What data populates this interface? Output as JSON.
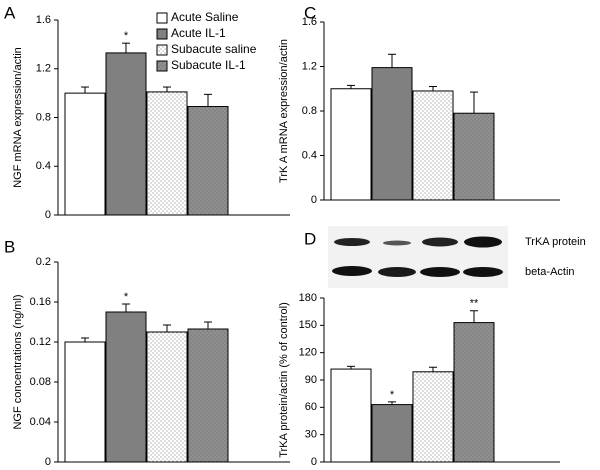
{
  "chart_data": [
    {
      "type": "bar",
      "panel": "A",
      "ylabel": "NGF mRNA expression/actin",
      "ylim": [
        0,
        1.6
      ],
      "yticks": [
        0,
        0.4,
        0.8,
        1.2,
        1.6
      ],
      "legend": "upper right",
      "series": [
        {
          "name": "Acute Saline",
          "color": "#ffffff",
          "dots": false,
          "values": [
            1.0
          ],
          "errors": [
            0.05
          ]
        },
        {
          "name": "Acute IL-1",
          "color": "#808080",
          "dots": false,
          "values": [
            1.33
          ],
          "errors": [
            0.08
          ]
        },
        {
          "name": "Subacute saline",
          "color": "#ffffff",
          "dots": true,
          "values": [
            1.01
          ],
          "errors": [
            0.04
          ]
        },
        {
          "name": "Subacute IL-1",
          "color": "#909090",
          "dots": true,
          "values": [
            0.89
          ],
          "errors": [
            0.1
          ]
        }
      ],
      "annotations": [
        {
          "series": 1,
          "text": "*"
        }
      ]
    },
    {
      "type": "bar",
      "panel": "B",
      "ylabel": "NGF concentrations (ng/ml)",
      "ylim": [
        0,
        0.2
      ],
      "yticks": [
        0,
        0.04,
        0.08,
        0.12,
        0.16,
        0.2
      ],
      "series": [
        {
          "color": "#ffffff",
          "dots": false,
          "values": [
            0.12
          ],
          "errors": [
            0.004
          ]
        },
        {
          "color": "#808080",
          "dots": false,
          "values": [
            0.15
          ],
          "errors": [
            0.008
          ]
        },
        {
          "color": "#ffffff",
          "dots": true,
          "values": [
            0.13
          ],
          "errors": [
            0.007
          ]
        },
        {
          "color": "#909090",
          "dots": true,
          "values": [
            0.133
          ],
          "errors": [
            0.007
          ]
        }
      ],
      "annotations": [
        {
          "series": 1,
          "text": "*"
        }
      ]
    },
    {
      "type": "bar",
      "panel": "C",
      "ylabel": "TrK A mRNA expression/actin",
      "ylim": [
        0,
        1.6
      ],
      "yticks": [
        0,
        0.4,
        0.8,
        1.2,
        1.6
      ],
      "series": [
        {
          "color": "#ffffff",
          "dots": false,
          "values": [
            1.0
          ],
          "errors": [
            0.03
          ]
        },
        {
          "color": "#808080",
          "dots": false,
          "values": [
            1.19
          ],
          "errors": [
            0.12
          ]
        },
        {
          "color": "#ffffff",
          "dots": true,
          "values": [
            0.98
          ],
          "errors": [
            0.04
          ]
        },
        {
          "color": "#909090",
          "dots": true,
          "values": [
            0.78
          ],
          "errors": [
            0.19
          ]
        }
      ],
      "annotations": []
    },
    {
      "type": "bar",
      "panel": "D",
      "ylabel": "TrKA protein/actin (% of control)",
      "ylim": [
        0,
        180
      ],
      "yticks": [
        0,
        30,
        60,
        90,
        120,
        150,
        180
      ],
      "blot_labels": [
        "TrKA protein",
        "beta-Actin"
      ],
      "series": [
        {
          "color": "#ffffff",
          "dots": false,
          "values": [
            102
          ],
          "errors": [
            3
          ]
        },
        {
          "color": "#808080",
          "dots": false,
          "values": [
            63
          ],
          "errors": [
            3
          ]
        },
        {
          "color": "#ffffff",
          "dots": true,
          "values": [
            99
          ],
          "errors": [
            5
          ]
        },
        {
          "color": "#909090",
          "dots": true,
          "values": [
            153
          ],
          "errors": [
            13
          ]
        }
      ],
      "annotations": [
        {
          "series": 1,
          "text": "*"
        },
        {
          "series": 3,
          "text": "**"
        }
      ]
    }
  ]
}
